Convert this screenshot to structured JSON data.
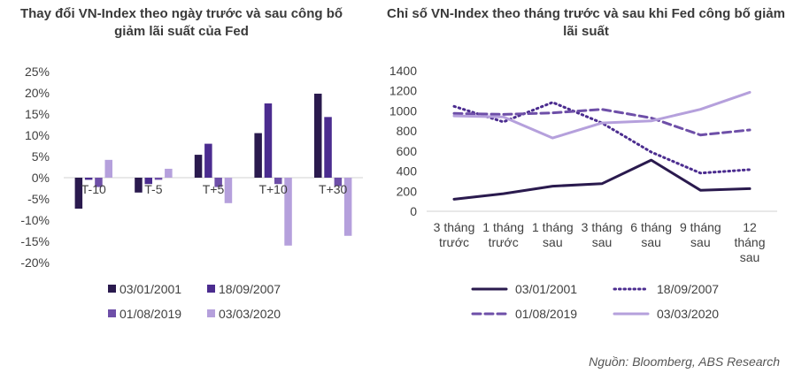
{
  "chart_data": [
    {
      "type": "bar",
      "title": "Thay đổi VN-Index theo ngày trước và sau công bố giảm lãi suất của Fed",
      "categories": [
        "T-10",
        "T-5",
        "T+5",
        "T+10",
        "T+30"
      ],
      "series": [
        {
          "name": "03/01/2001",
          "color": "#2a1a4e",
          "values": [
            -0.073,
            -0.035,
            0.054,
            0.105,
            0.198
          ]
        },
        {
          "name": "18/09/2007",
          "color": "#4b2c8f",
          "values": [
            -0.005,
            -0.015,
            0.08,
            0.175,
            0.143
          ]
        },
        {
          "name": "01/08/2019",
          "color": "#6e4fa8",
          "values": [
            -0.022,
            -0.005,
            -0.022,
            -0.015,
            -0.02
          ]
        },
        {
          "name": "03/03/2020",
          "color": "#b5a0dc",
          "values": [
            0.042,
            0.021,
            -0.06,
            -0.16,
            -0.137
          ]
        }
      ],
      "ylim": [
        -0.2,
        0.25
      ],
      "yticks": [
        "25%",
        "20%",
        "15%",
        "10%",
        "5%",
        "0%",
        "-5%",
        "-10%",
        "-15%",
        "-20%"
      ],
      "grid": false,
      "legend": "bottom"
    },
    {
      "type": "line",
      "title": "Chỉ số VN-Index theo tháng trước và sau khi Fed công bố giảm lãi suất",
      "categories": [
        "3 tháng trước",
        "1 tháng trước",
        "1 tháng sau",
        "3 tháng sau",
        "6 tháng sau",
        "9 tháng sau",
        "12 tháng sau"
      ],
      "category_lines": [
        [
          "3 tháng",
          "trước"
        ],
        [
          "1 tháng",
          "trước"
        ],
        [
          "1 tháng",
          "sau"
        ],
        [
          "3 tháng",
          "sau"
        ],
        [
          "6 tháng",
          "sau"
        ],
        [
          "9 tháng",
          "sau"
        ],
        [
          "12",
          "tháng",
          "sau"
        ]
      ],
      "series": [
        {
          "name": "03/01/2001",
          "color": "#2a1a4e",
          "style": "solid",
          "values": [
            120,
            175,
            250,
            275,
            510,
            210,
            225
          ]
        },
        {
          "name": "18/09/2007",
          "color": "#4b2c8f",
          "style": "dotted",
          "values": [
            1045,
            890,
            1085,
            880,
            590,
            380,
            415
          ]
        },
        {
          "name": "01/08/2019",
          "color": "#6e4fa8",
          "style": "dashed",
          "values": [
            975,
            965,
            980,
            1015,
            930,
            760,
            810
          ]
        },
        {
          "name": "03/03/2020",
          "color": "#b5a0dc",
          "style": "solid",
          "values": [
            950,
            940,
            730,
            880,
            900,
            1015,
            1185
          ]
        }
      ],
      "ylim": [
        0,
        1400
      ],
      "yticks": [
        "0",
        "200",
        "400",
        "600",
        "800",
        "1000",
        "1200",
        "1400"
      ],
      "grid": false,
      "legend": "bottom"
    }
  ],
  "source": "Nguồn: Bloomberg, ABS Research"
}
